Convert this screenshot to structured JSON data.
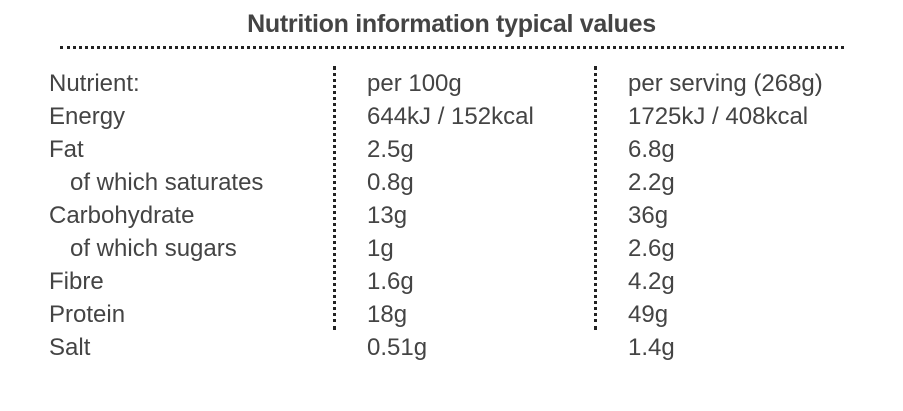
{
  "title": "Nutrition information typical values",
  "header": {
    "nutrient": "Nutrient:",
    "per_100g": "per 100g",
    "per_serving": "per serving (268g)"
  },
  "rows": [
    {
      "nutrient": "Energy",
      "per_100g": "644kJ / 152kcal",
      "per_serving": "1725kJ / 408kcal"
    },
    {
      "nutrient": "Fat",
      "per_100g": "2.5g",
      "per_serving": "6.8g"
    },
    {
      "nutrient": "of which saturates",
      "per_100g": "0.8g",
      "per_serving": "2.2g"
    },
    {
      "nutrient": "Carbohydrate",
      "per_100g": "13g",
      "per_serving": "36g"
    },
    {
      "nutrient": "of which sugars",
      "per_100g": "1g",
      "per_serving": "2.6g"
    },
    {
      "nutrient": "Fibre",
      "per_100g": "1.6g",
      "per_serving": "4.2g"
    },
    {
      "nutrient": "Protein",
      "per_100g": "18g",
      "per_serving": "49g"
    },
    {
      "nutrient": "Salt",
      "per_100g": "0.51g",
      "per_serving": "1.4g"
    }
  ]
}
